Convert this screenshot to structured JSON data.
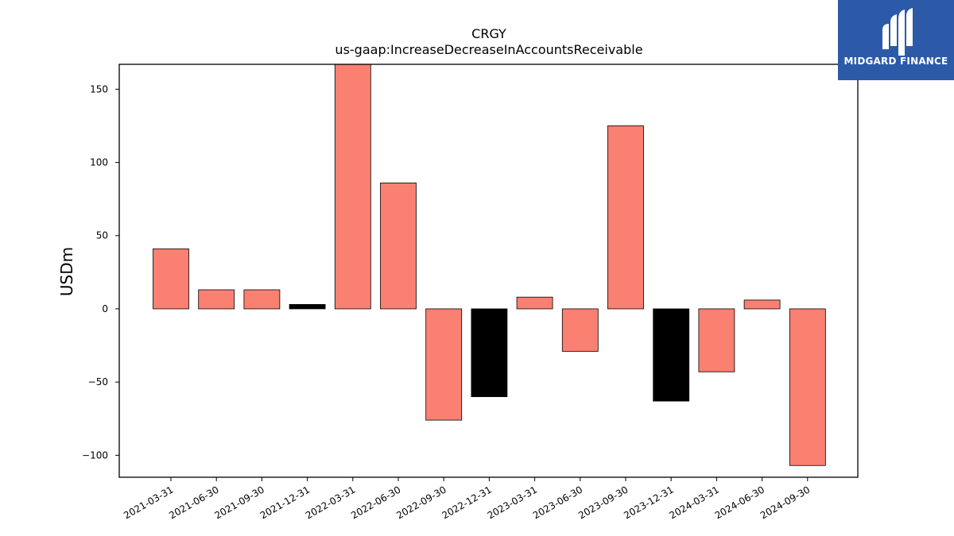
{
  "brand": {
    "name": "MIDGARD FINANCE",
    "logo_icon": "midgard-m-icon",
    "logo_bg": "#2c5aa8"
  },
  "chart_data": {
    "type": "bar",
    "title": "CRGY",
    "subtitle": "us-gaap:IncreaseDecreaseInAccountsReceivable",
    "xlabel": "",
    "ylabel": "USDm",
    "ylim": [
      -115,
      167
    ],
    "yticks": [
      -100,
      -50,
      0,
      50,
      100,
      150
    ],
    "ytick_labels": [
      "−100",
      "−50",
      "0",
      "50",
      "100",
      "150"
    ],
    "grid": false,
    "categories": [
      "2021-03-31",
      "2021-06-30",
      "2021-09-30",
      "2021-12-31",
      "2022-03-31",
      "2022-06-30",
      "2022-09-30",
      "2022-12-31",
      "2023-03-31",
      "2023-06-30",
      "2023-09-30",
      "2023-12-31",
      "2024-03-31",
      "2024-06-30",
      "2024-09-30"
    ],
    "values": [
      41,
      13,
      13,
      3,
      167,
      86,
      -76,
      -60,
      8,
      -29,
      125,
      -63,
      -43,
      6,
      -107
    ],
    "bar_colors": [
      "#fa8072",
      "#fa8072",
      "#fa8072",
      "#000000",
      "#fa8072",
      "#fa8072",
      "#fa8072",
      "#000000",
      "#fa8072",
      "#fa8072",
      "#fa8072",
      "#000000",
      "#fa8072",
      "#fa8072",
      "#fa8072"
    ]
  }
}
